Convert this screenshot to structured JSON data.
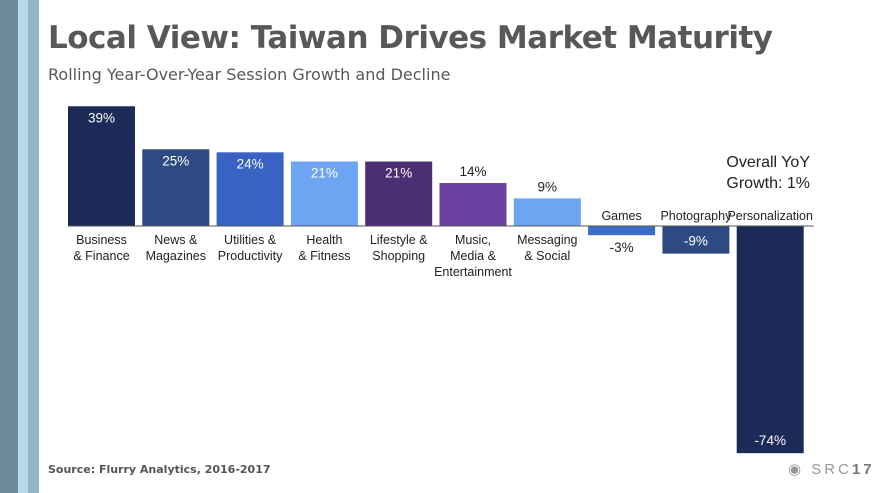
{
  "title": "Local View: Taiwan Drives Market Maturity",
  "subtitle": "Rolling Year-Over-Year Session Growth and Decline",
  "source": "Source: Flurry Analytics, 2016-2017",
  "logo": {
    "text": "SRC",
    "bold": "17"
  },
  "chart_data": {
    "type": "bar",
    "title": "Local View: Taiwan Drives Market Maturity",
    "categories": [
      "Business\n& Finance",
      "News &\nMagazines",
      "Utilities &\nProductivity",
      "Health\n& Fitness",
      "Lifestyle &\nShopping",
      "Music,\nMedia &\nEntertainment",
      "Messaging\n& Social",
      "Games",
      "Photography",
      "Personalization"
    ],
    "values": [
      39,
      25,
      24,
      21,
      21,
      14,
      9,
      -3,
      -9,
      -74
    ],
    "labels": [
      "39%",
      "25%",
      "24%",
      "21%",
      "21%",
      "14%",
      "9%",
      "-3%",
      "-9%",
      "-74%"
    ],
    "colors": [
      "#1b2a57",
      "#2e4a82",
      "#3863c2",
      "#6ea5f2",
      "#4c2f72",
      "#6a40a0",
      "#6ea5f2",
      "#3a6cc8",
      "#2e4a82",
      "#1b2a57"
    ],
    "annotation": [
      "Overall YoY",
      "Growth:  1%"
    ],
    "ylim": [
      -74,
      39
    ]
  }
}
